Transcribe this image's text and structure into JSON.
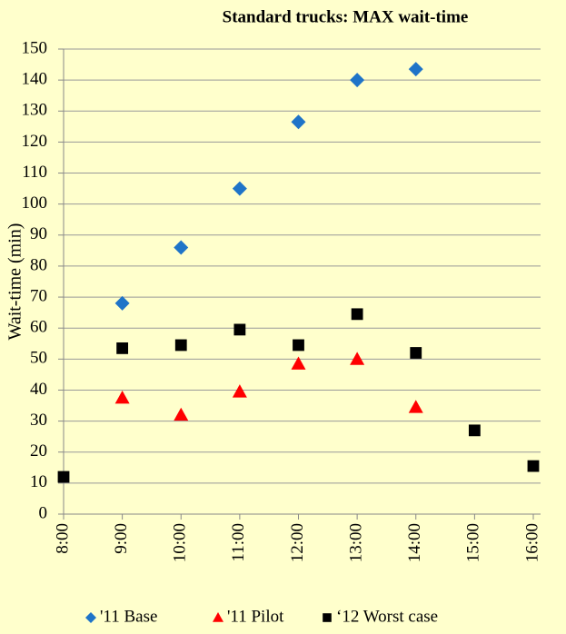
{
  "chart_data": {
    "type": "scatter",
    "title": "Standard trucks: MAX wait-time",
    "y_label": "Wait-time (min)",
    "categories": [
      "8:00",
      "9:00",
      "10:00",
      "11:00",
      "12:00",
      "13:00",
      "14:00",
      "15:00",
      "16:00"
    ],
    "series": [
      {
        "name": "'11 Base",
        "color": "#1f74c8",
        "marker": "diamond",
        "values": [
          null,
          68,
          86,
          105,
          126.5,
          140,
          143.5,
          null,
          null
        ]
      },
      {
        "name": "'11 Pilot",
        "color": "#ff0000",
        "marker": "triangle",
        "values": [
          null,
          37.5,
          32,
          39.5,
          48.5,
          50,
          34.5,
          null,
          null
        ]
      },
      {
        "name": "‘12 Worst case",
        "color": "#000000",
        "marker": "square",
        "values": [
          12,
          53.5,
          54.5,
          59.5,
          54.5,
          64.5,
          52,
          27,
          15.5
        ]
      }
    ],
    "ylim": [
      0,
      150
    ],
    "yticks": [
      0,
      10,
      20,
      30,
      40,
      50,
      60,
      70,
      80,
      90,
      100,
      110,
      120,
      130,
      140,
      150
    ],
    "grid": true,
    "legend": "bottom"
  }
}
